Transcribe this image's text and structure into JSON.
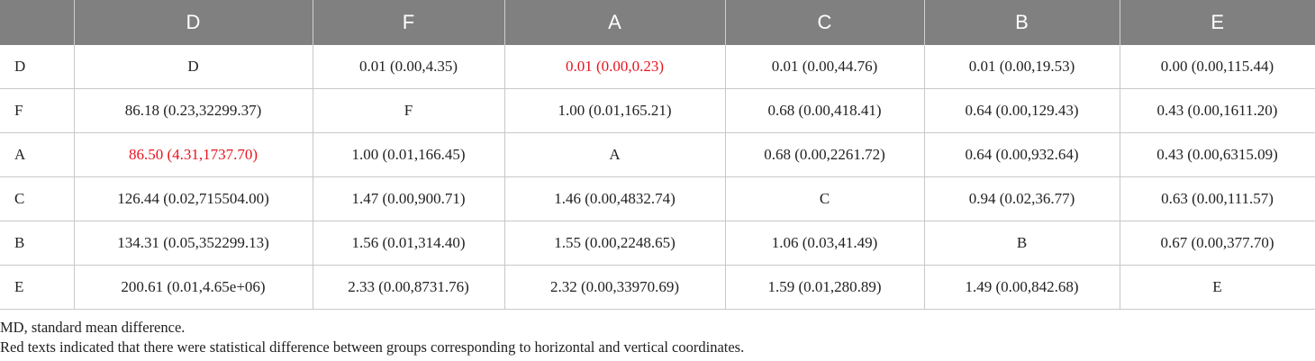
{
  "table": {
    "header": [
      "",
      "D",
      "F",
      "A",
      "C",
      "B",
      "E"
    ],
    "rows": [
      {
        "label": "D",
        "cells": [
          "D",
          "0.01 (0.00,4.35)",
          "0.01 (0.00,0.23)",
          "0.01 (0.00,44.76)",
          "0.01 (0.00,19.53)",
          "0.00 (0.00,115.44)"
        ],
        "highlight": [
          false,
          false,
          true,
          false,
          false,
          false
        ]
      },
      {
        "label": "F",
        "cells": [
          "86.18 (0.23,32299.37)",
          "F",
          "1.00 (0.01,165.21)",
          "0.68 (0.00,418.41)",
          "0.64 (0.00,129.43)",
          "0.43 (0.00,1611.20)"
        ],
        "highlight": [
          false,
          false,
          false,
          false,
          false,
          false
        ]
      },
      {
        "label": "A",
        "cells": [
          "86.50 (4.31,1737.70)",
          "1.00 (0.01,166.45)",
          "A",
          "0.68 (0.00,2261.72)",
          "0.64 (0.00,932.64)",
          "0.43 (0.00,6315.09)"
        ],
        "highlight": [
          true,
          false,
          false,
          false,
          false,
          false
        ]
      },
      {
        "label": "C",
        "cells": [
          "126.44 (0.02,715504.00)",
          "1.47 (0.00,900.71)",
          "1.46 (0.00,4832.74)",
          "C",
          "0.94 (0.02,36.77)",
          "0.63 (0.00,111.57)"
        ],
        "highlight": [
          false,
          false,
          false,
          false,
          false,
          false
        ]
      },
      {
        "label": "B",
        "cells": [
          "134.31 (0.05,352299.13)",
          "1.56 (0.01,314.40)",
          "1.55 (0.00,2248.65)",
          "1.06 (0.03,41.49)",
          "B",
          "0.67 (0.00,377.70)"
        ],
        "highlight": [
          false,
          false,
          false,
          false,
          false,
          false
        ]
      },
      {
        "label": "E",
        "cells": [
          "200.61 (0.01,4.65e+06)",
          "2.33 (0.00,8731.76)",
          "2.32 (0.00,33970.69)",
          "1.59 (0.01,280.89)",
          "1.49 (0.00,842.68)",
          "E"
        ],
        "highlight": [
          false,
          false,
          false,
          false,
          false,
          false
        ]
      }
    ]
  },
  "colors": {
    "header_bg": "#808080",
    "highlight": "#e8141e"
  },
  "notes": [
    "MD, standard mean difference.",
    "Red texts indicated that there were statistical difference between groups corresponding to horizontal and vertical coordinates."
  ]
}
